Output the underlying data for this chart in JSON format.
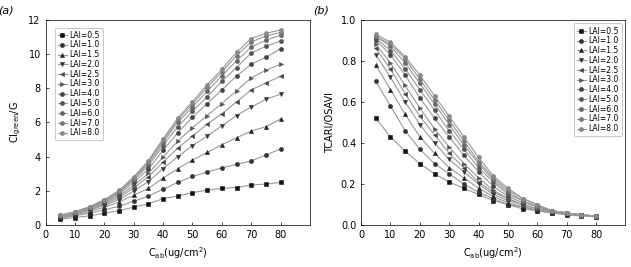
{
  "x_vals": [
    5,
    10,
    15,
    20,
    25,
    30,
    35,
    40,
    45,
    50,
    55,
    60,
    65,
    70,
    75,
    80
  ],
  "lai_labels": [
    "LAI=0.5",
    "LAI=1.0",
    "LAI=1.5",
    "LAI=2.0",
    "LAI=2.5",
    "LAI=3.0",
    "LAI=4.0",
    "LAI=5.0",
    "LAI=6.0",
    "LAI=7.0",
    "LAI=8.0"
  ],
  "panel_a_ylabel": "CI$_\\mathrm{green}$/G",
  "panel_b_ylabel": "TCARI/OSAVI",
  "xlabel_a": "C$_\\mathrm{ab}$(ug/cm$^2$)",
  "xlabel_b": "C$_\\mathrm{ab}$(ug/cm$^2$)",
  "panel_a_label": "(a)",
  "panel_b_label": "(b)",
  "panel_a_ylim": [
    0,
    12
  ],
  "panel_b_ylim": [
    0.0,
    1.0
  ],
  "xlim": [
    0,
    90
  ],
  "xticks": [
    0,
    10,
    20,
    30,
    40,
    50,
    60,
    70,
    80
  ],
  "panel_a_yticks": [
    0,
    2,
    4,
    6,
    8,
    10,
    12
  ],
  "panel_b_yticks": [
    0.0,
    0.2,
    0.4,
    0.6,
    0.8,
    1.0
  ],
  "line_color": "#999999",
  "marker_defs": [
    "s",
    "o",
    "^",
    "v",
    "<",
    ">",
    "o",
    "o",
    "o",
    "o",
    "o"
  ],
  "mfc_list": [
    "#111111",
    "#333333",
    "#222222",
    "#333333",
    "#444444",
    "#555555",
    "#444444",
    "#555555",
    "#666666",
    "#777777",
    "#888888"
  ],
  "panel_a_data": [
    [
      0.35,
      0.45,
      0.55,
      0.7,
      0.85,
      1.05,
      1.25,
      1.55,
      1.7,
      1.9,
      2.05,
      2.15,
      2.2,
      2.35,
      2.4,
      2.5
    ],
    [
      0.4,
      0.55,
      0.7,
      0.9,
      1.1,
      1.4,
      1.7,
      2.1,
      2.5,
      2.85,
      3.1,
      3.35,
      3.55,
      3.75,
      4.1,
      4.45
    ],
    [
      0.45,
      0.6,
      0.8,
      1.05,
      1.35,
      1.75,
      2.15,
      2.75,
      3.3,
      3.8,
      4.25,
      4.7,
      5.1,
      5.5,
      5.75,
      6.2
    ],
    [
      0.48,
      0.65,
      0.88,
      1.15,
      1.5,
      2.0,
      2.55,
      3.3,
      4.0,
      4.65,
      5.2,
      5.8,
      6.4,
      6.9,
      7.35,
      7.65
    ],
    [
      0.5,
      0.68,
      0.92,
      1.22,
      1.62,
      2.18,
      2.82,
      3.68,
      4.5,
      5.2,
      5.9,
      6.5,
      7.2,
      7.9,
      8.3,
      8.7
    ],
    [
      0.52,
      0.7,
      0.96,
      1.28,
      1.72,
      2.32,
      3.02,
      3.98,
      4.9,
      5.7,
      6.4,
      7.1,
      7.85,
      8.6,
      9.05,
      9.4
    ],
    [
      0.54,
      0.73,
      1.0,
      1.35,
      1.82,
      2.5,
      3.28,
      4.38,
      5.4,
      6.3,
      7.1,
      7.9,
      8.7,
      9.4,
      9.8,
      10.3
    ],
    [
      0.56,
      0.75,
      1.03,
      1.4,
      1.9,
      2.62,
      3.48,
      4.65,
      5.75,
      6.65,
      7.5,
      8.4,
      9.2,
      10.05,
      10.45,
      10.75
    ],
    [
      0.57,
      0.77,
      1.05,
      1.44,
      1.96,
      2.7,
      3.6,
      4.82,
      6.0,
      6.9,
      7.82,
      8.72,
      9.6,
      10.4,
      10.8,
      11.1
    ],
    [
      0.58,
      0.78,
      1.07,
      1.47,
      2.0,
      2.77,
      3.7,
      4.95,
      6.15,
      7.08,
      8.05,
      8.95,
      9.9,
      10.7,
      11.05,
      11.25
    ],
    [
      0.59,
      0.79,
      1.08,
      1.49,
      2.03,
      2.82,
      3.77,
      5.05,
      6.25,
      7.2,
      8.2,
      9.1,
      10.1,
      10.9,
      11.2,
      11.4
    ]
  ],
  "panel_b_data": [
    [
      0.52,
      0.43,
      0.36,
      0.3,
      0.25,
      0.21,
      0.18,
      0.15,
      0.12,
      0.1,
      0.08,
      0.07,
      0.06,
      0.05,
      0.045,
      0.04
    ],
    [
      0.7,
      0.58,
      0.46,
      0.37,
      0.3,
      0.25,
      0.2,
      0.16,
      0.13,
      0.1,
      0.09,
      0.07,
      0.06,
      0.055,
      0.05,
      0.045
    ],
    [
      0.78,
      0.66,
      0.54,
      0.43,
      0.35,
      0.28,
      0.23,
      0.18,
      0.14,
      0.11,
      0.09,
      0.075,
      0.065,
      0.055,
      0.05,
      0.045
    ],
    [
      0.83,
      0.72,
      0.6,
      0.49,
      0.4,
      0.32,
      0.26,
      0.2,
      0.15,
      0.12,
      0.1,
      0.08,
      0.065,
      0.055,
      0.05,
      0.045
    ],
    [
      0.86,
      0.76,
      0.64,
      0.53,
      0.44,
      0.35,
      0.28,
      0.21,
      0.16,
      0.13,
      0.1,
      0.08,
      0.065,
      0.055,
      0.05,
      0.045
    ],
    [
      0.88,
      0.79,
      0.68,
      0.57,
      0.47,
      0.38,
      0.3,
      0.23,
      0.17,
      0.13,
      0.1,
      0.08,
      0.07,
      0.06,
      0.05,
      0.045
    ],
    [
      0.9,
      0.83,
      0.73,
      0.62,
      0.52,
      0.43,
      0.34,
      0.26,
      0.19,
      0.14,
      0.11,
      0.09,
      0.07,
      0.06,
      0.05,
      0.045
    ],
    [
      0.91,
      0.85,
      0.76,
      0.66,
      0.56,
      0.46,
      0.37,
      0.28,
      0.21,
      0.15,
      0.12,
      0.09,
      0.07,
      0.06,
      0.05,
      0.045
    ],
    [
      0.92,
      0.87,
      0.79,
      0.69,
      0.59,
      0.49,
      0.39,
      0.3,
      0.22,
      0.16,
      0.12,
      0.09,
      0.07,
      0.06,
      0.05,
      0.045
    ],
    [
      0.92,
      0.88,
      0.81,
      0.71,
      0.61,
      0.51,
      0.41,
      0.31,
      0.23,
      0.17,
      0.13,
      0.1,
      0.07,
      0.06,
      0.05,
      0.045
    ],
    [
      0.93,
      0.89,
      0.82,
      0.73,
      0.63,
      0.53,
      0.43,
      0.33,
      0.24,
      0.18,
      0.13,
      0.1,
      0.07,
      0.06,
      0.05,
      0.045
    ]
  ],
  "line_width": 0.8,
  "font_size": 7,
  "ms": 3.0
}
